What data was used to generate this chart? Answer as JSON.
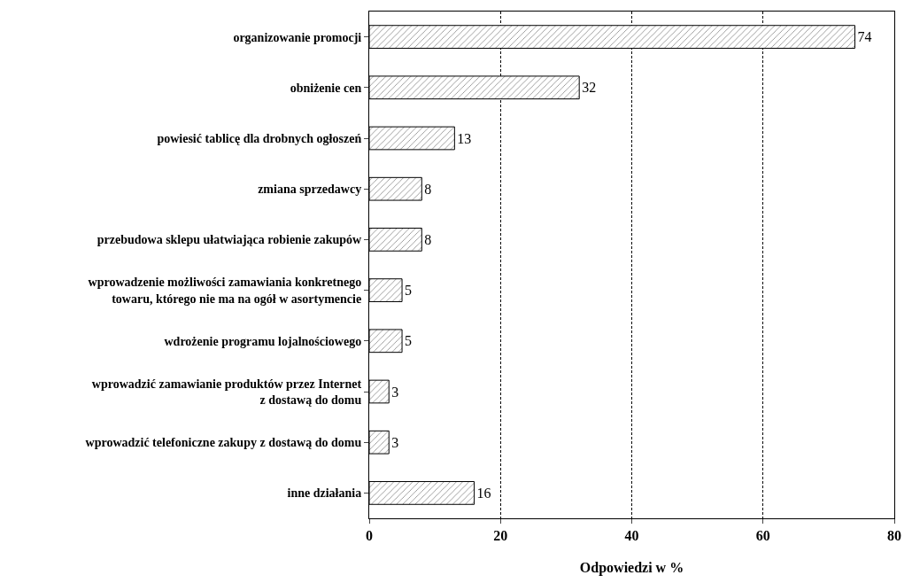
{
  "chart_data": {
    "type": "bar",
    "orientation": "horizontal",
    "xlabel": "Odpowiedzi w %",
    "categories": [
      "organizowanie promocji",
      "obniżenie cen",
      "powiesić tablicę dla drobnych ogłoszeń",
      "zmiana sprzedawcy",
      "przebudowa sklepu ułatwiająca robienie zakupów",
      "wprowadzenie możliwości zamawiania konkretnego\ntowaru, którego nie ma na ogół w asortymencie",
      "wdrożenie programu lojalnościowego",
      "wprowadzić zamawianie produktów przez Internet\nz dostawą do domu",
      "wprowadzić telefoniczne zakupy z dostawą do domu",
      "inne działania"
    ],
    "values": [
      74,
      32,
      13,
      8,
      8,
      5,
      5,
      3,
      3,
      16
    ],
    "color": "#000000",
    "xlim": [
      0,
      80
    ],
    "xticks": [
      0,
      20,
      40,
      60,
      80
    ],
    "grid": "x",
    "data_labels": true
  }
}
